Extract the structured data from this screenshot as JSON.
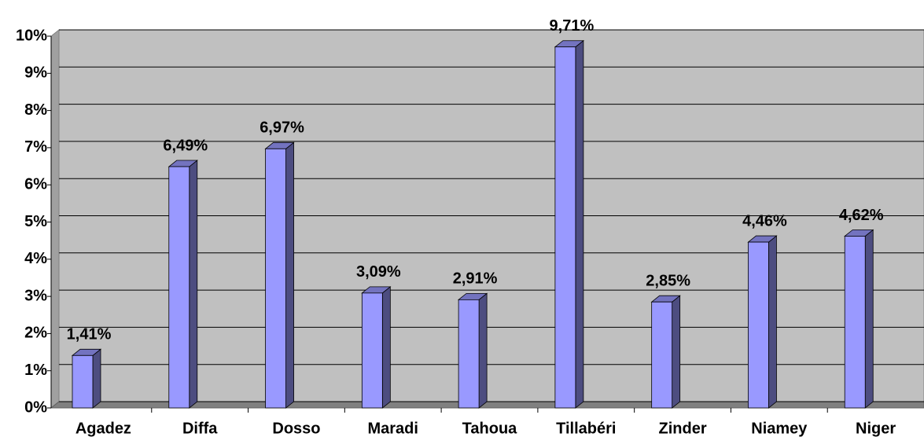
{
  "chart_data": {
    "type": "bar",
    "categories": [
      "Agadez",
      "Diffa",
      "Dosso",
      "Maradi",
      "Tahoua",
      "Tillabéri",
      "Zinder",
      "Niamey",
      "Niger"
    ],
    "values": [
      1.41,
      6.49,
      6.97,
      3.09,
      2.91,
      9.71,
      2.85,
      4.46,
      4.62
    ],
    "value_labels": [
      "1,41%",
      "6,49%",
      "6,97%",
      "3,09%",
      "2,91%",
      "9,71%",
      "2,85%",
      "4,46%",
      "4,62%"
    ],
    "color": "#9999ff",
    "ylim": [
      0,
      10
    ],
    "yticks": [
      {
        "value": 0,
        "label": "0%"
      },
      {
        "value": 1,
        "label": "1%"
      },
      {
        "value": 2,
        "label": "2%"
      },
      {
        "value": 3,
        "label": "3%"
      },
      {
        "value": 4,
        "label": "4%"
      },
      {
        "value": 5,
        "label": "5%"
      },
      {
        "value": 6,
        "label": "6%"
      },
      {
        "value": 7,
        "label": "7%"
      },
      {
        "value": 8,
        "label": "8%"
      },
      {
        "value": 9,
        "label": "9%"
      },
      {
        "value": 10,
        "label": "10%"
      }
    ],
    "grid": true
  }
}
